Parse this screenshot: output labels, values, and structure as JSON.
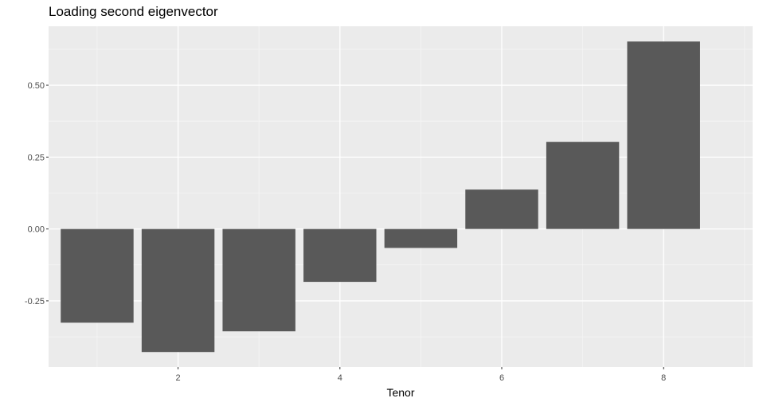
{
  "chart_data": {
    "type": "bar",
    "title": "Loading second eigenvector",
    "xlabel": "Tenor",
    "ylabel": "",
    "x": [
      1,
      2,
      3,
      4,
      5,
      6,
      7,
      8
    ],
    "values": [
      -0.326,
      -0.428,
      -0.356,
      -0.184,
      -0.066,
      0.137,
      0.303,
      0.652
    ],
    "xlim": [
      0.4,
      9.1
    ],
    "ylim": [
      -0.48,
      0.705
    ],
    "x_ticks": [
      2,
      4,
      6,
      8
    ],
    "x_tick_labels": [
      "2",
      "4",
      "6",
      "8"
    ],
    "y_ticks": [
      -0.25,
      0,
      0.25,
      0.5
    ],
    "y_tick_labels": [
      "-0.25",
      "0.00",
      "0.25",
      "0.50"
    ],
    "grid": true,
    "colors": {
      "panel": "#EBEBEB",
      "bar": "#595959",
      "grid_major": "#FFFFFF",
      "grid_minor": "#F5F5F5"
    }
  }
}
